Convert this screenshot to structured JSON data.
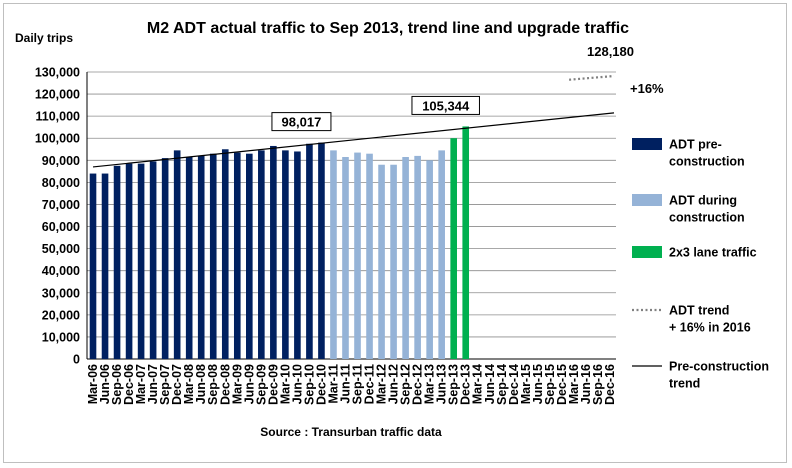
{
  "chart_data": {
    "type": "bar",
    "title": "M2 ADT actual traffic to Sep 2013, trend line and upgrade traffic",
    "ylabel": "Daily trips",
    "xlabel": "",
    "footer": "Source : Transurban traffic data",
    "ylim": [
      0,
      130000
    ],
    "y_ticks": [
      "0",
      "10,000",
      "20,000",
      "30,000",
      "40,000",
      "50,000",
      "60,000",
      "70,000",
      "80,000",
      "90,000",
      "100,000",
      "110,000",
      "120,000",
      "130,000"
    ],
    "grid": "horizontal",
    "legend_position": "right",
    "categories": [
      "Mar-06",
      "Jun-06",
      "Sep-06",
      "Dec-06",
      "Mar-07",
      "Jun-07",
      "Sep-07",
      "Dec-07",
      "Mar-08",
      "Jun-08",
      "Sep-08",
      "Dec-08",
      "Mar-09",
      "Jun-09",
      "Sep-09",
      "Dec-09",
      "Mar-10",
      "Jun-10",
      "Sep-10",
      "Dec-10",
      "Mar-11",
      "Jun-11",
      "Sep-11",
      "Dec-11",
      "Mar-12",
      "Jun-12",
      "Sep-12",
      "Dec-12",
      "Mar-13",
      "Jun-13",
      "Sep-13",
      "Dec-13",
      "Mar-14",
      "Jun-14",
      "Sep-14",
      "Dec-14",
      "Mar-15",
      "Jun-15",
      "Sep-15",
      "Dec-15",
      "Mar-16",
      "Jun-16",
      "Sep-16",
      "Dec-16"
    ],
    "series": [
      {
        "name": "ADT pre-construction",
        "legend_lines": [
          "ADT pre-",
          "construction"
        ],
        "color": "#002060",
        "values": [
          84000,
          84000,
          87500,
          88500,
          88500,
          89500,
          91000,
          94500,
          91500,
          92000,
          93000,
          95000,
          93500,
          93000,
          94500,
          96500,
          94500,
          94000,
          97500,
          98017,
          null,
          null,
          null,
          null,
          null,
          null,
          null,
          null,
          null,
          null,
          null,
          null,
          null,
          null,
          null,
          null,
          null,
          null,
          null,
          null,
          null,
          null,
          null,
          null
        ]
      },
      {
        "name": "ADT during construction",
        "legend_lines": [
          "ADT during",
          "construction"
        ],
        "color": "#95b3d7",
        "values": [
          null,
          null,
          null,
          null,
          null,
          null,
          null,
          null,
          null,
          null,
          null,
          null,
          null,
          null,
          null,
          null,
          null,
          null,
          null,
          null,
          94500,
          91500,
          93500,
          93000,
          88000,
          88000,
          91500,
          92000,
          90000,
          94500,
          null,
          null,
          null,
          null,
          null,
          null,
          null,
          null,
          null,
          null,
          null,
          null,
          null,
          null
        ]
      },
      {
        "name": "2x3 lane traffic",
        "legend_lines": [
          "2x3 lane traffic"
        ],
        "color": "#00b050",
        "values": [
          null,
          null,
          null,
          null,
          null,
          null,
          null,
          null,
          null,
          null,
          null,
          null,
          null,
          null,
          null,
          null,
          null,
          null,
          null,
          null,
          null,
          null,
          null,
          null,
          null,
          null,
          null,
          null,
          null,
          null,
          100000,
          105344,
          null,
          null,
          null,
          null,
          null,
          null,
          null,
          null,
          null,
          null,
          null,
          null
        ]
      }
    ],
    "lines": [
      {
        "name": "Pre-construction trend",
        "legend_lines": [
          "Pre-construction",
          "trend"
        ],
        "color": "#000000",
        "style": "solid",
        "points": [
          {
            "x": "Mar-06",
            "y": 87000
          },
          {
            "x": "Dec-16",
            "y": 111500
          }
        ]
      },
      {
        "name": "ADT trend + 16% in 2016",
        "legend_lines": [
          "ADT trend",
          "+ 16% in 2016"
        ],
        "color": "#808080",
        "style": "dotted",
        "points": [
          {
            "x": "Mar-16",
            "y": 126500
          },
          {
            "x": "Dec-16",
            "y": 128180
          }
        ]
      }
    ],
    "annotations": [
      {
        "text": "98,017",
        "x": "Dec-10",
        "boxed": true
      },
      {
        "text": "105,344",
        "x": "Dec-13",
        "boxed": true
      },
      {
        "text": "128,180",
        "x": "Dec-16",
        "boxed": false
      },
      {
        "text": "+16%",
        "x": "Dec-16",
        "boxed": false
      }
    ]
  }
}
